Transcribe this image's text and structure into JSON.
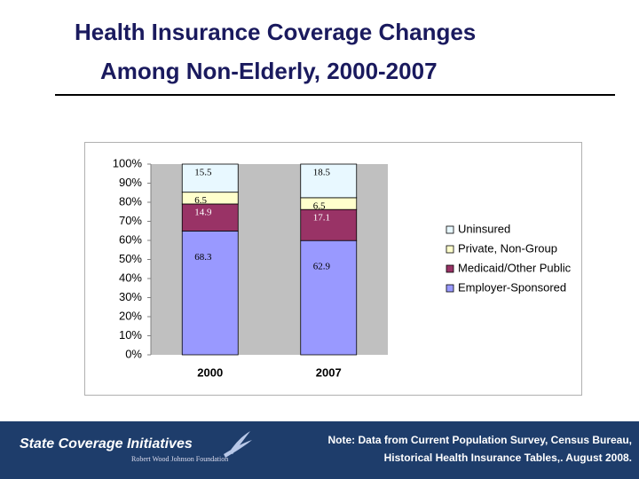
{
  "slide": {
    "title": [
      "Health Insurance Coverage Changes",
      "Among Non-Elderly, 2000-2007"
    ],
    "logo": "State Coverage Initiatives",
    "logo_sub": "Robert Wood Johnson Foundation",
    "note": [
      "Note:  Data from Current Population Survey, Census Bureau,",
      "Historical Health Insurance Tables,. August 2008."
    ]
  },
  "chart_data": {
    "type": "bar",
    "stacking": "percent",
    "categories": [
      "2000",
      "2007"
    ],
    "series": [
      {
        "name": "Employer-Sponsored",
        "color": "#9999ff",
        "values": [
          68.3,
          62.9
        ]
      },
      {
        "name": "Medicaid/Other Public",
        "color": "#993366",
        "values": [
          14.9,
          17.1
        ]
      },
      {
        "name": "Private, Non-Group",
        "color": "#ffffcc",
        "values": [
          6.5,
          6.5
        ]
      },
      {
        "name": "Uninsured",
        "color": "#e8f8ff",
        "values": [
          15.5,
          18.5
        ]
      }
    ],
    "ylim": [
      0,
      100
    ],
    "yticks": [
      {
        "value": 0,
        "label": "0%"
      },
      {
        "value": 10,
        "label": "10%"
      },
      {
        "value": 20,
        "label": "20%"
      },
      {
        "value": 30,
        "label": "30%"
      },
      {
        "value": 40,
        "label": "40%"
      },
      {
        "value": 50,
        "label": "50%"
      },
      {
        "value": 60,
        "label": "60%"
      },
      {
        "value": 70,
        "label": "70%"
      },
      {
        "value": 80,
        "label": "80%"
      },
      {
        "value": 90,
        "label": "90%"
      },
      {
        "value": 100,
        "label": "100%"
      }
    ],
    "grid": false,
    "legend": "right"
  }
}
